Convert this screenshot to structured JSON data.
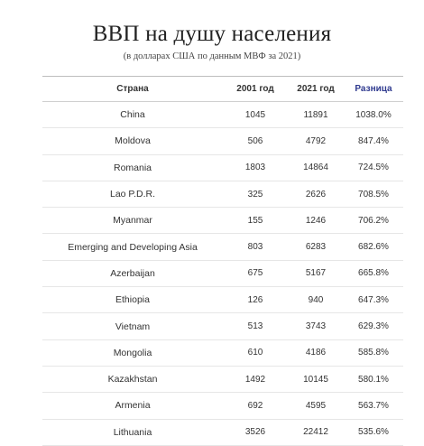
{
  "title": "ВВП на душу населения",
  "subtitle": "(в долларах США по данным МВФ за 2021)",
  "table": {
    "headers": {
      "country": "Страна",
      "year1": "2001 год",
      "year2": "2021 год",
      "diff": "Разница"
    },
    "rows": [
      {
        "country": "China",
        "y2001": "1045",
        "y2021": "11891",
        "diff": "1038.0%"
      },
      {
        "country": "Moldova",
        "y2001": "506",
        "y2021": "4792",
        "diff": "847.4%"
      },
      {
        "country": "Romania",
        "y2001": "1803",
        "y2021": "14864",
        "diff": "724.5%"
      },
      {
        "country": "Lao P.D.R.",
        "y2001": "325",
        "y2021": "2626",
        "diff": "708.5%"
      },
      {
        "country": "Myanmar",
        "y2001": "155",
        "y2021": "1246",
        "diff": "706.2%"
      },
      {
        "country": "Emerging and Developing Asia",
        "y2001": "803",
        "y2021": "6283",
        "diff": "682.6%"
      },
      {
        "country": "Azerbaijan",
        "y2001": "675",
        "y2021": "5167",
        "diff": "665.8%"
      },
      {
        "country": "Ethiopia",
        "y2001": "126",
        "y2021": "940",
        "diff": "647.3%"
      },
      {
        "country": "Vietnam",
        "y2001": "513",
        "y2021": "3743",
        "diff": "629.3%"
      },
      {
        "country": "Mongolia",
        "y2001": "610",
        "y2021": "4186",
        "diff": "585.8%"
      },
      {
        "country": "Kazakhstan",
        "y2001": "1492",
        "y2021": "10145",
        "diff": "580.1%"
      },
      {
        "country": "Armenia",
        "y2001": "692",
        "y2021": "4595",
        "diff": "563.7%"
      },
      {
        "country": "Lithuania",
        "y2001": "3526",
        "y2021": "22412",
        "diff": "535.6%"
      }
    ]
  },
  "colors": {
    "diff_header": "#2f3a8f",
    "text": "#333333"
  }
}
